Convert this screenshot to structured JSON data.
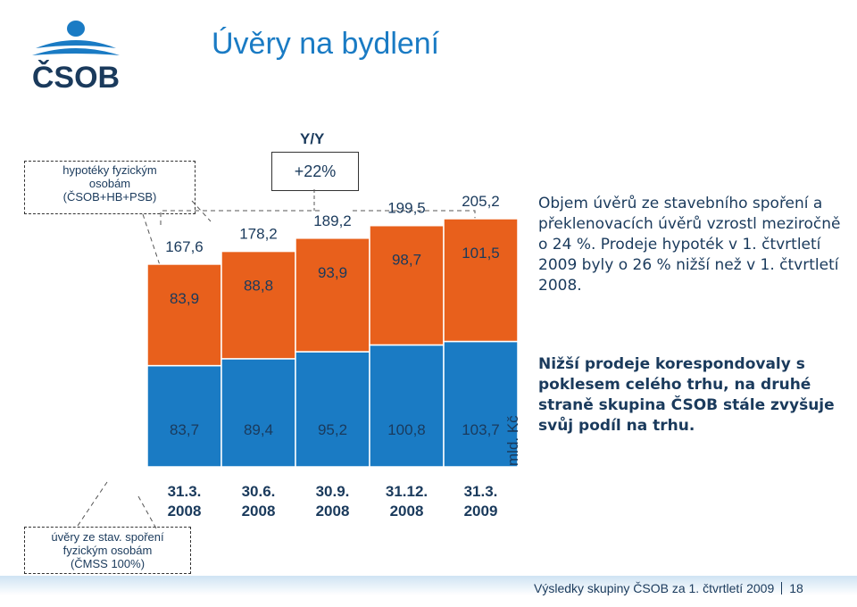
{
  "page": {
    "title": "Úvěry na bydlení",
    "logo_text": "ČSOB",
    "footer_text": "Výsledky skupiny ČSOB za 1. čtvrtletí 2009",
    "page_number": "18"
  },
  "callouts": {
    "top": [
      "hypotéky fyzickým",
      "osobám",
      "(ČSOB+HB+PSB)"
    ],
    "bottom": [
      "úvěry ze stav. spoření",
      "fyzickým osobám",
      "(ČMSS 100%)"
    ]
  },
  "yy": {
    "label": "Y/Y",
    "value": "+22%"
  },
  "side_text": {
    "paragraph1": "Objem úvěrů ze stavebního spoření a překlenovacích úvěrů vzrostl meziročně o 24 %. Prodeje hypoték v 1. čtvrtletí 2009 byly o 26 % nižší než v 1. čtvrtletí 2008.",
    "paragraph2": "Nižší prodeje korespondovaly s poklesem celého trhu, na druhé straně skupina ČSOB stále zvyšuje svůj podíl na trhu."
  },
  "colors": {
    "bottom_series": "#1a7bc4",
    "top_series": "#e8601c",
    "text": "#1a3a5c",
    "title": "#1a7bc4"
  },
  "chart_data": {
    "type": "bar",
    "stacked": true,
    "unit_label": "mld. Kč",
    "categories": [
      [
        "31.3.",
        "2008"
      ],
      [
        "30.6.",
        "2008"
      ],
      [
        "30.9.",
        "2008"
      ],
      [
        "31.12.",
        "2008"
      ],
      [
        "31.3.",
        "2009"
      ]
    ],
    "series": [
      {
        "values": [
          83.7,
          89.4,
          95.2,
          100.8,
          103.7
        ],
        "labels": [
          "83,7",
          "89,4",
          "95,2",
          "100,8",
          "103,7"
        ]
      },
      {
        "values": [
          83.9,
          88.8,
          93.9,
          98.7,
          101.5
        ],
        "labels": [
          "83,9",
          "88,8",
          "93,9",
          "98,7",
          "101,5"
        ]
      }
    ],
    "totals": [
      167.6,
      178.2,
      189.2,
      199.5,
      205.2
    ],
    "total_labels": [
      "167,6",
      "178,2",
      "189,2",
      "199,5",
      "205,2"
    ],
    "ylim": [
      0,
      205.2
    ],
    "grid": false,
    "legend": "none"
  }
}
